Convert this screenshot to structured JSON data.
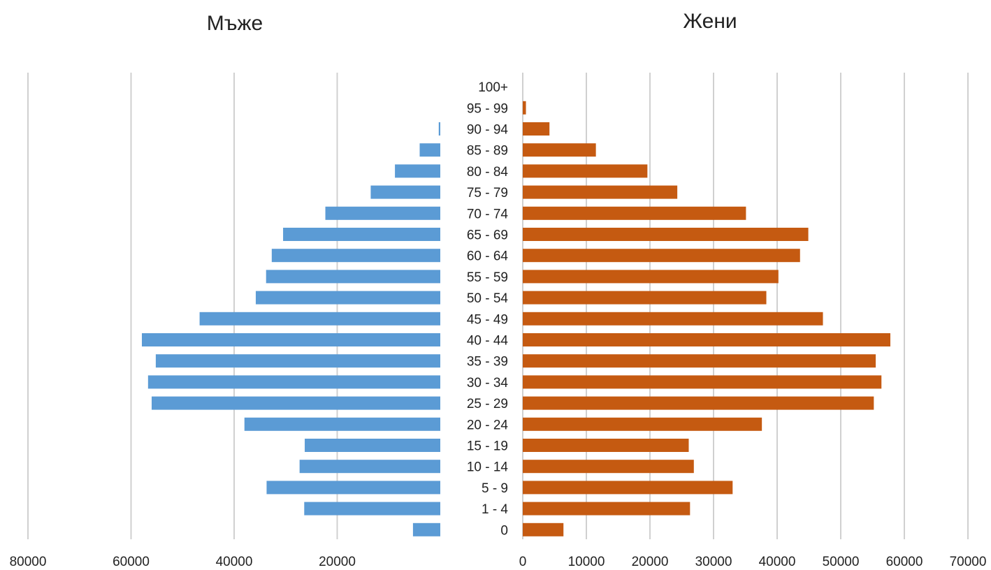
{
  "chart_data": [
    {
      "type": "bar",
      "orientation": "horizontal",
      "direction": "reversed",
      "title": "Мъже",
      "xlim": [
        0,
        80000
      ],
      "xticks": [
        "80000",
        "60000",
        "40000",
        "20000"
      ],
      "grid": true,
      "color": "#5b9bd5",
      "categories": [
        "0",
        "1 - 4",
        "5 - 9",
        "10 - 14",
        "15 - 19",
        "20 - 24",
        "25 - 29",
        "30 - 34",
        "35 - 39",
        "40 - 44",
        "45 - 49",
        "50 - 54",
        "55 - 59",
        "60 - 64",
        "65 - 69",
        "70 - 74",
        "75 - 79",
        "80 - 84",
        "85 - 89",
        "90 - 94",
        "95 - 99",
        "100+"
      ],
      "values": [
        5300,
        26400,
        33700,
        27300,
        26300,
        38000,
        56000,
        56700,
        55200,
        57900,
        46700,
        35800,
        33800,
        32700,
        30500,
        22300,
        13500,
        8800,
        4000,
        300,
        0,
        0
      ]
    },
    {
      "type": "bar",
      "orientation": "horizontal",
      "title": "Жени",
      "xlim": [
        0,
        70000
      ],
      "xticks": [
        "0",
        "10000",
        "20000",
        "30000",
        "40000",
        "50000",
        "60000",
        "70000"
      ],
      "grid": true,
      "color": "#c55a11",
      "categories": [
        "0",
        "1 - 4",
        "5 - 9",
        "10 - 14",
        "15 - 19",
        "20 - 24",
        "25 - 29",
        "30 - 34",
        "35 - 39",
        "40 - 44",
        "45 - 49",
        "50 - 54",
        "55 - 59",
        "60 - 64",
        "65 - 69",
        "70 - 74",
        "75 - 79",
        "80 - 84",
        "85 - 89",
        "90 - 94",
        "95 - 99",
        "100+"
      ],
      "values": [
        6400,
        26300,
        33000,
        26900,
        26100,
        37600,
        55200,
        56400,
        55500,
        57800,
        47200,
        38300,
        40200,
        43600,
        44900,
        35100,
        24300,
        19600,
        11500,
        4200,
        500,
        0
      ]
    }
  ]
}
